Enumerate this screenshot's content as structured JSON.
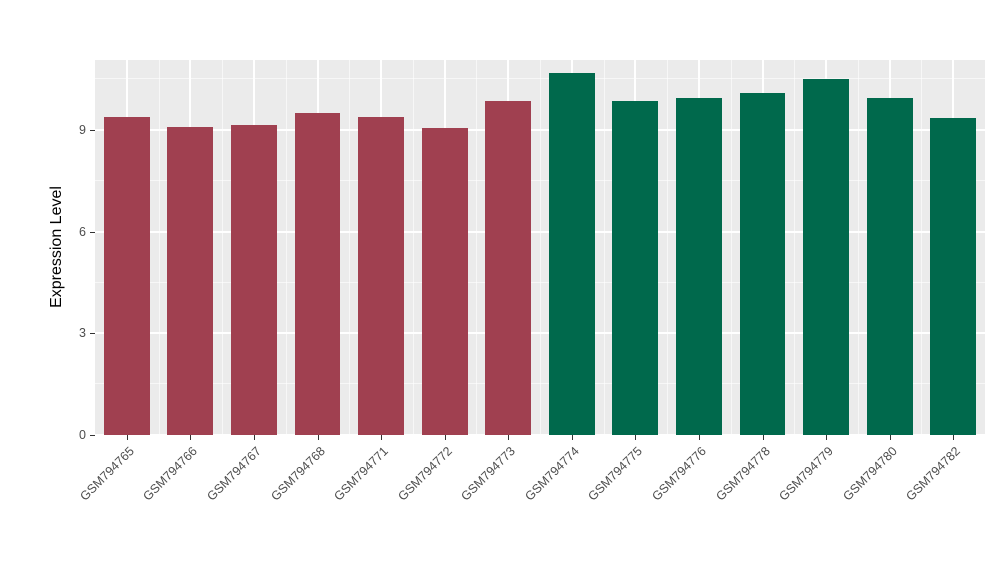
{
  "figure": {
    "background": "#FFFFFF"
  },
  "chart_data": {
    "type": "bar",
    "title": "",
    "xlabel": "",
    "ylabel": "Expression Level",
    "categories": [
      "GSM794765",
      "GSM794766",
      "GSM794767",
      "GSM794768",
      "GSM794771",
      "GSM794772",
      "GSM794773",
      "GSM794774",
      "GSM794775",
      "GSM794776",
      "GSM794778",
      "GSM794779",
      "GSM794780",
      "GSM794782"
    ],
    "values": [
      9.4,
      9.1,
      9.15,
      9.5,
      9.4,
      9.05,
      9.85,
      10.7,
      9.85,
      9.95,
      10.1,
      10.5,
      9.95,
      9.35
    ],
    "bar_groups": [
      "maroon",
      "maroon",
      "maroon",
      "maroon",
      "maroon",
      "maroon",
      "maroon",
      "green",
      "green",
      "green",
      "green",
      "green",
      "green",
      "green"
    ],
    "group_colors": {
      "maroon": "#A04050",
      "green": "#00694C"
    },
    "yticks": [
      0,
      3,
      6,
      9
    ],
    "ylim": [
      0,
      11.07
    ],
    "minor_offset": 1.5,
    "panel_background": "#EBEBEB",
    "grid_color": "#FFFFFF",
    "tick_label_color": "#4D4D4D",
    "bar_width_frac": 0.72,
    "grid": "on",
    "legend_position": "none"
  }
}
